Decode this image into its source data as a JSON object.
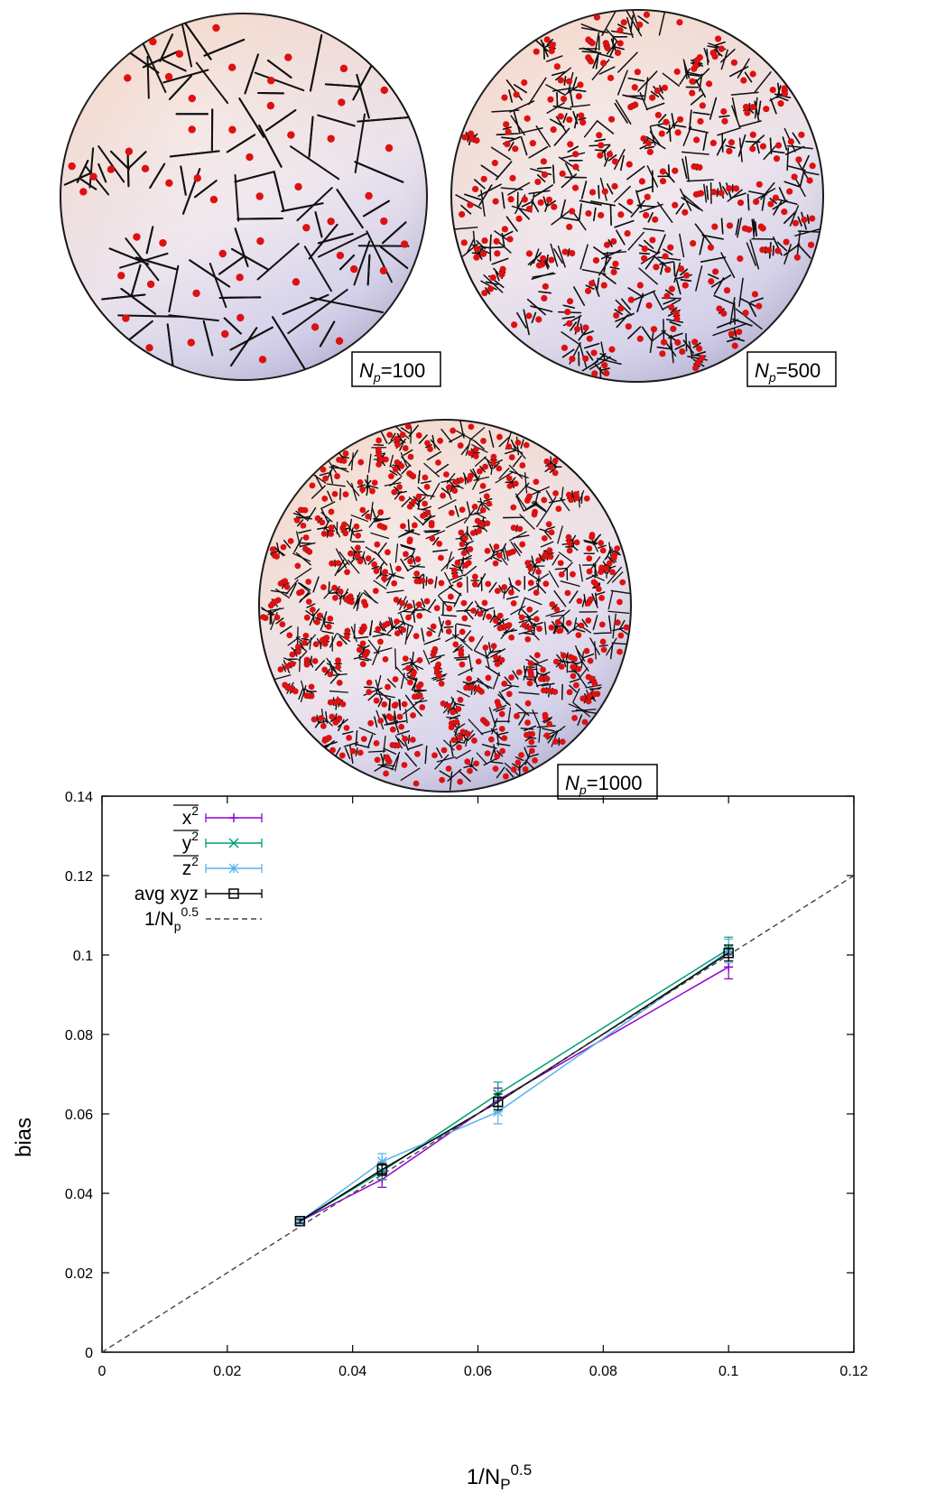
{
  "figures": {
    "panels": [
      {
        "n_var": "N",
        "n_sub": "p",
        "n_value": "100",
        "cells": 100
      },
      {
        "n_var": "N",
        "n_sub": "p",
        "n_value": "500",
        "cells": 500
      },
      {
        "n_var": "N",
        "n_sub": "p",
        "n_value": "1000",
        "cells": 1000
      }
    ],
    "colors": {
      "particle": "#dd1111",
      "voronoi_edge": "#111111",
      "sphere_top": "#f3d3c2",
      "sphere_bottom": "#c7c7ea"
    }
  },
  "chart_data": {
    "type": "line",
    "xlabel_base": "1/N",
    "xlabel_sub": "P",
    "xlabel_sup": "0.5",
    "ylabel": "bias",
    "xlim": [
      0,
      0.12
    ],
    "ylim": [
      0,
      0.14
    ],
    "x_ticks": [
      "0",
      "0.02",
      "0.04",
      "0.06",
      "0.08",
      "0.1",
      "0.12"
    ],
    "y_ticks": [
      "0",
      "0.02",
      "0.04",
      "0.06",
      "0.08",
      "0.1",
      "0.12",
      "0.14"
    ],
    "legend_position": "top-left",
    "grid": false,
    "series": [
      {
        "name": "x",
        "sup": "2",
        "overline": true,
        "color": "#9400d3",
        "marker": "plus",
        "x": [
          0.0316,
          0.0447,
          0.0632,
          0.1
        ],
        "y": [
          0.033,
          0.0435,
          0.0635,
          0.097
        ],
        "err": [
          0.0006,
          0.002,
          0.003,
          0.003
        ]
      },
      {
        "name": "y",
        "sup": "2",
        "overline": true,
        "color": "#009e73",
        "marker": "cross",
        "x": [
          0.0316,
          0.0447,
          0.0632,
          0.1
        ],
        "y": [
          0.033,
          0.0455,
          0.065,
          0.1015
        ],
        "err": [
          0.0006,
          0.002,
          0.003,
          0.003
        ]
      },
      {
        "name": "z",
        "sup": "2",
        "overline": true,
        "color": "#56b4e9",
        "marker": "star",
        "x": [
          0.0316,
          0.0447,
          0.0632,
          0.1
        ],
        "y": [
          0.033,
          0.048,
          0.0605,
          0.101
        ],
        "err": [
          0.0006,
          0.002,
          0.003,
          0.003
        ]
      },
      {
        "name": "avg xyz",
        "sup": "",
        "overline": false,
        "color": "#000000",
        "marker": "square",
        "x": [
          0.0316,
          0.0447,
          0.0632,
          0.1
        ],
        "y": [
          0.033,
          0.046,
          0.063,
          0.1005
        ],
        "err": [
          0.0005,
          0.0015,
          0.002,
          0.002
        ]
      },
      {
        "name": "1/N",
        "sub": "p",
        "sup": "0.5",
        "overline": false,
        "color": "#444444",
        "marker": "none",
        "dashed": true,
        "x": [
          0,
          0.12
        ],
        "y": [
          0,
          0.12
        ]
      }
    ]
  }
}
